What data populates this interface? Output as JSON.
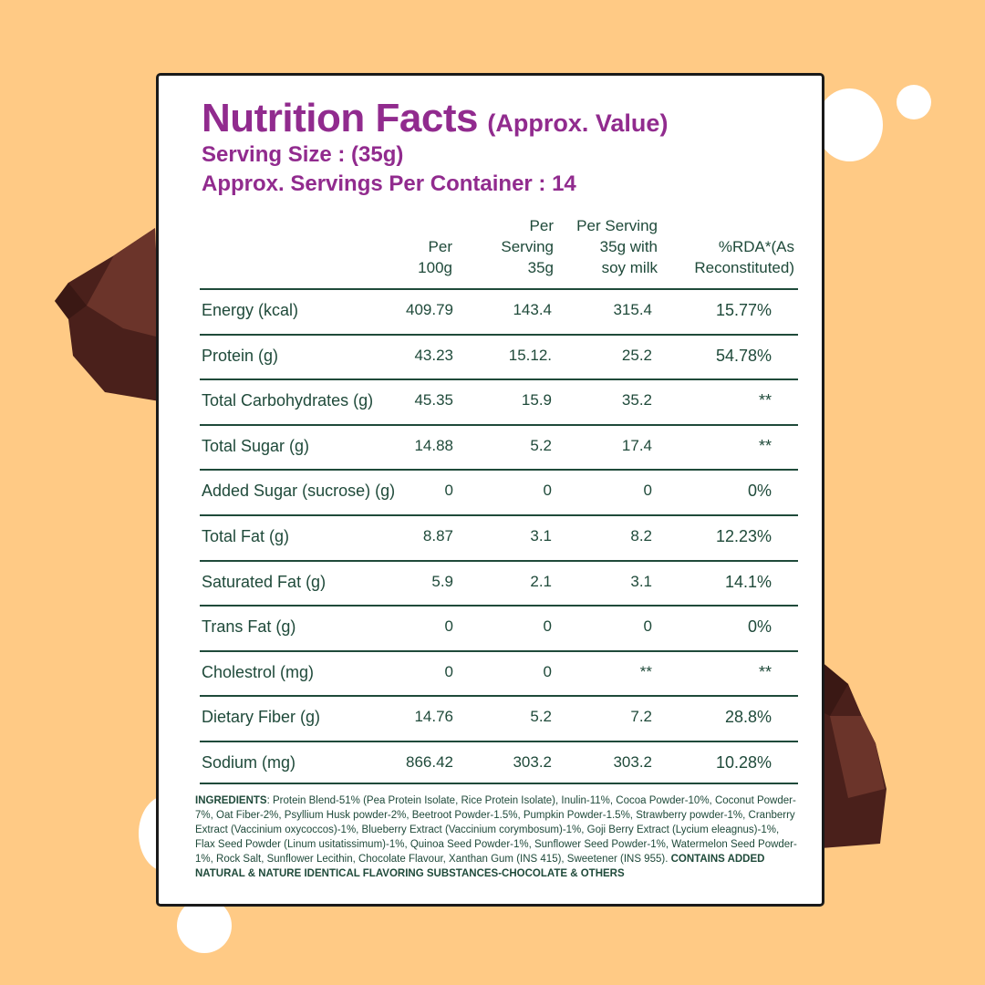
{
  "colors": {
    "background": "#ffca85",
    "heading": "#912b8e",
    "text": "#1f4a3a",
    "chocolate": "#5a2a22"
  },
  "title": "Nutrition Facts",
  "title_note": "(Approx. Value)",
  "serving_size": "Serving Size :  (35g)",
  "servings_per_container": "Approx. Servings Per Container : 14",
  "table": {
    "headers": [
      "",
      "Per\n100g",
      "Per\nServing\n35g",
      "Per Serving\n35g with\nsoy milk",
      "%RDA*(As\nReconstituted)"
    ],
    "rows": [
      [
        "Energy (kcal)",
        "409.79",
        "143.4",
        "315.4",
        "15.77%"
      ],
      [
        "Protein (g)",
        "43.23",
        "15.12.",
        "25.2",
        "54.78%"
      ],
      [
        "Total Carbohydrates (g)",
        "45.35",
        "15.9",
        "35.2",
        "**"
      ],
      [
        "Total Sugar (g)",
        "14.88",
        "5.2",
        "17.4",
        "**"
      ],
      [
        "Added Sugar (sucrose) (g)",
        "0",
        "0",
        "0",
        "0%"
      ],
      [
        "Total Fat (g)",
        "8.87",
        "3.1",
        "8.2",
        "12.23%"
      ],
      [
        "Saturated Fat (g)",
        "5.9",
        "2.1",
        "3.1",
        "14.1%"
      ],
      [
        "Trans Fat (g)",
        "0",
        "0",
        "0",
        "0%"
      ],
      [
        "Cholestrol (mg)",
        "0",
        "0",
        "**",
        "**"
      ],
      [
        "Dietary Fiber (g)",
        "14.76",
        "5.2",
        "7.2",
        "28.8%"
      ],
      [
        "Sodium (mg)",
        "866.42",
        "303.2",
        "303.2",
        "10.28%"
      ]
    ]
  },
  "ingredients": {
    "label": "INGREDIENTS",
    "text": ": Protein Blend-51% (Pea Protein Isolate, Rice Protein Isolate), Inulin-11%, Cocoa Powder-10%, Coconut Powder-7%, Oat Fiber-2%, Psyllium Husk powder-2%, Beetroot Powder-1.5%, Pumpkin Powder-1.5%, Strawberry powder-1%, Cranberry Extract (Vaccinium oxycoccos)-1%, Blueberry Extract (Vaccinium corymbosum)-1%, Goji Berry Extract (Lycium eleagnus)-1%, Flax Seed Powder (Linum usitatissimum)-1%, Quinoa Seed Powder-1%, Sunflower Seed Powder-1%, Watermelon Seed Powder-1%, Rock Salt, Sunflower Lecithin, Chocolate Flavour, Xanthan Gum (INS 415), Sweetener (INS 955). ",
    "note": "CONTAINS ADDED NATURAL & NATURE IDENTICAL FLAVORING SUBSTANCES-CHOCOLATE & OTHERS"
  }
}
